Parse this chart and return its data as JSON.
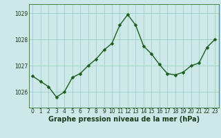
{
  "x": [
    0,
    1,
    2,
    3,
    4,
    5,
    6,
    7,
    8,
    9,
    10,
    11,
    12,
    13,
    14,
    15,
    16,
    17,
    18,
    19,
    20,
    21,
    22,
    23
  ],
  "y": [
    1026.6,
    1026.4,
    1026.2,
    1025.8,
    1026.0,
    1026.55,
    1026.7,
    1027.0,
    1027.25,
    1027.6,
    1027.85,
    1028.55,
    1028.95,
    1028.55,
    1027.75,
    1027.45,
    1027.05,
    1026.7,
    1026.65,
    1026.75,
    1027.0,
    1027.1,
    1027.7,
    1028.0
  ],
  "line_color": "#1a5c1a",
  "marker_color": "#1a5c1a",
  "bg_color": "#cce8e8",
  "grid_color": "#99ccbb",
  "xlabel": "Graphe pression niveau de la mer (hPa)",
  "xlabel_fontsize": 7,
  "ylabel_ticks": [
    1026,
    1027,
    1028,
    1029
  ],
  "ylim": [
    1025.4,
    1029.35
  ],
  "xlim": [
    -0.5,
    23.5
  ],
  "xticks": [
    0,
    1,
    2,
    3,
    4,
    5,
    6,
    7,
    8,
    9,
    10,
    11,
    12,
    13,
    14,
    15,
    16,
    17,
    18,
    19,
    20,
    21,
    22,
    23
  ],
  "tick_fontsize": 5.5,
  "marker_size": 2.5,
  "line_width": 1.0
}
